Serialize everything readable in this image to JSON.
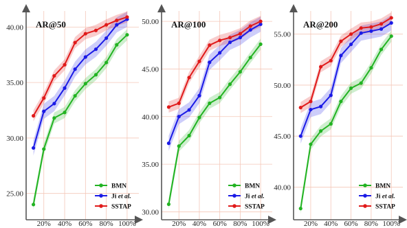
{
  "figure_colors": {
    "grid": "#f4c7b8",
    "axis": "#555555",
    "BMN": "#22b322",
    "Ji": "#1a1ae6",
    "SSTAP": "#e01a1a"
  },
  "chart_data": [
    {
      "type": "line",
      "title": "AR@50",
      "xlabel": "",
      "ylabel": "",
      "x": [
        10,
        20,
        30,
        40,
        50,
        60,
        70,
        80,
        90,
        100
      ],
      "xlim": [
        3,
        106
      ],
      "x_tick_values": [
        20,
        40,
        60,
        80,
        100
      ],
      "x_tick_labels": [
        "20%",
        "40%",
        "60%",
        "80%",
        "100%"
      ],
      "ylim": [
        23.0,
        41.2
      ],
      "y_tick_values": [
        25,
        30,
        35,
        40
      ],
      "y_tick_labels": [
        "25.00",
        "30.00",
        "35.00",
        "40.00"
      ],
      "grid": true,
      "legend_position": "bottom-right",
      "series": [
        {
          "name": "BMN",
          "values": [
            24.0,
            29.0,
            31.8,
            32.3,
            33.8,
            34.9,
            35.7,
            36.8,
            38.4,
            39.3
          ]
        },
        {
          "name": "Ji et al.",
          "values": [
            29.1,
            32.4,
            33.1,
            34.5,
            36.2,
            37.3,
            38.0,
            39.0,
            40.2,
            40.7
          ]
        },
        {
          "name": "SSTAP",
          "values": [
            32.0,
            33.6,
            35.6,
            36.6,
            38.6,
            39.4,
            39.7,
            40.2,
            40.6,
            40.9
          ]
        }
      ]
    },
    {
      "type": "line",
      "title": "AR@100",
      "xlabel": "",
      "ylabel": "",
      "x": [
        10,
        20,
        30,
        40,
        50,
        60,
        70,
        80,
        90,
        100
      ],
      "xlim": [
        3,
        106
      ],
      "x_tick_values": [
        20,
        40,
        60,
        80,
        100
      ],
      "x_tick_labels": [
        "20%",
        "40%",
        "60%",
        "80%",
        "100%"
      ],
      "ylim": [
        29.6,
        50.8
      ],
      "y_tick_values": [
        30,
        35,
        40,
        45,
        50
      ],
      "y_tick_labels": [
        "30.00",
        "35.00",
        "40.00",
        "45.00",
        "50.00"
      ],
      "grid": true,
      "legend_position": "bottom-right",
      "series": [
        {
          "name": "BMN",
          "values": [
            30.8,
            36.9,
            38.0,
            39.9,
            41.4,
            42.0,
            43.4,
            44.7,
            46.2,
            47.6
          ]
        },
        {
          "name": "Ji et al.",
          "values": [
            37.2,
            40.0,
            40.7,
            42.2,
            45.7,
            46.7,
            47.8,
            48.3,
            49.1,
            49.7
          ]
        },
        {
          "name": "SSTAP",
          "values": [
            41.0,
            41.4,
            44.1,
            45.8,
            47.5,
            48.0,
            48.3,
            48.7,
            49.5,
            50.0
          ]
        }
      ]
    },
    {
      "type": "line",
      "title": "AR@200",
      "xlabel": "",
      "ylabel": "",
      "x": [
        10,
        20,
        30,
        40,
        50,
        60,
        70,
        80,
        90,
        100
      ],
      "xlim": [
        3,
        106
      ],
      "x_tick_values": [
        20,
        40,
        60,
        80,
        100
      ],
      "x_tick_labels": [
        "20%",
        "40%",
        "60%",
        "80%",
        "100%"
      ],
      "ylim": [
        37.2,
        57.0
      ],
      "y_tick_values": [
        40,
        45,
        50,
        55
      ],
      "y_tick_labels": [
        "40.00",
        "45.00",
        "50.00",
        "55.00"
      ],
      "grid": true,
      "legend_position": "bottom-right",
      "series": [
        {
          "name": "BMN",
          "values": [
            37.9,
            44.2,
            45.5,
            46.2,
            48.4,
            49.7,
            50.2,
            51.7,
            53.5,
            54.8
          ]
        },
        {
          "name": "Ji et al.",
          "values": [
            45.0,
            47.6,
            47.9,
            49.0,
            52.9,
            54.0,
            55.1,
            55.3,
            55.5,
            56.1
          ]
        },
        {
          "name": "SSTAP",
          "values": [
            47.8,
            48.4,
            51.8,
            52.4,
            54.3,
            55.0,
            55.6,
            55.7,
            56.0,
            56.6
          ]
        }
      ]
    }
  ],
  "legend_labels": {
    "BMN": "BMN",
    "Ji_prefix": "Ji ",
    "Ji_suffix": "et al.",
    "SSTAP": "SSTAP"
  }
}
